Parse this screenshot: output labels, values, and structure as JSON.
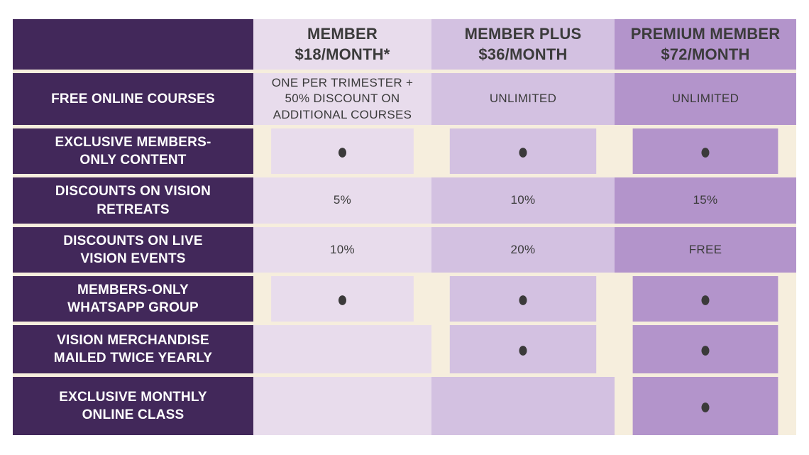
{
  "colors": {
    "page_background": "#ffffff",
    "feature_column": "#42285a",
    "member_column": "#e8dcec",
    "member_plus_column": "#d3c1e1",
    "premium_column": "#b394cb",
    "row_gap": "#f6eedd",
    "heading_text": "#3b3b3b",
    "feature_label_text": "#ffffff",
    "dot": "#3b3a3a"
  },
  "table": {
    "columns": [
      {
        "id": "member",
        "title": "MEMBER\n$18/MONTH*"
      },
      {
        "id": "member_plus",
        "title": "MEMBER PLUS\n$36/MONTH"
      },
      {
        "id": "premium",
        "title": "PREMIUM MEMBER\n$72/MONTH"
      }
    ],
    "dot_glyph": "●",
    "rows": [
      {
        "label": "FREE ONLINE COURSES",
        "cells": [
          "ONE PER TRIMESTER +\n50% DISCOUNT ON\nADDITIONAL COURSES",
          "UNLIMITED",
          "UNLIMITED"
        ]
      },
      {
        "label": "EXCLUSIVE MEMBERS-\nONLY CONTENT",
        "cells": [
          "●",
          "●",
          "●"
        ]
      },
      {
        "label": "DISCOUNTS ON VISION\nRETREATS",
        "cells": [
          "5%",
          "10%",
          "15%"
        ]
      },
      {
        "label": "DISCOUNTS ON LIVE\nVISION EVENTS",
        "cells": [
          "10%",
          "20%",
          "FREE"
        ]
      },
      {
        "label": "MEMBERS-ONLY\nWHATSAPP GROUP",
        "cells": [
          "●",
          "●",
          "●"
        ]
      },
      {
        "label": "VISION MERCHANDISE\nMAILED TWICE YEARLY",
        "cells": [
          "",
          "●",
          "●"
        ]
      },
      {
        "label": "EXCLUSIVE MONTHLY\nONLINE CLASS",
        "cells": [
          "",
          "",
          "●"
        ]
      }
    ]
  }
}
